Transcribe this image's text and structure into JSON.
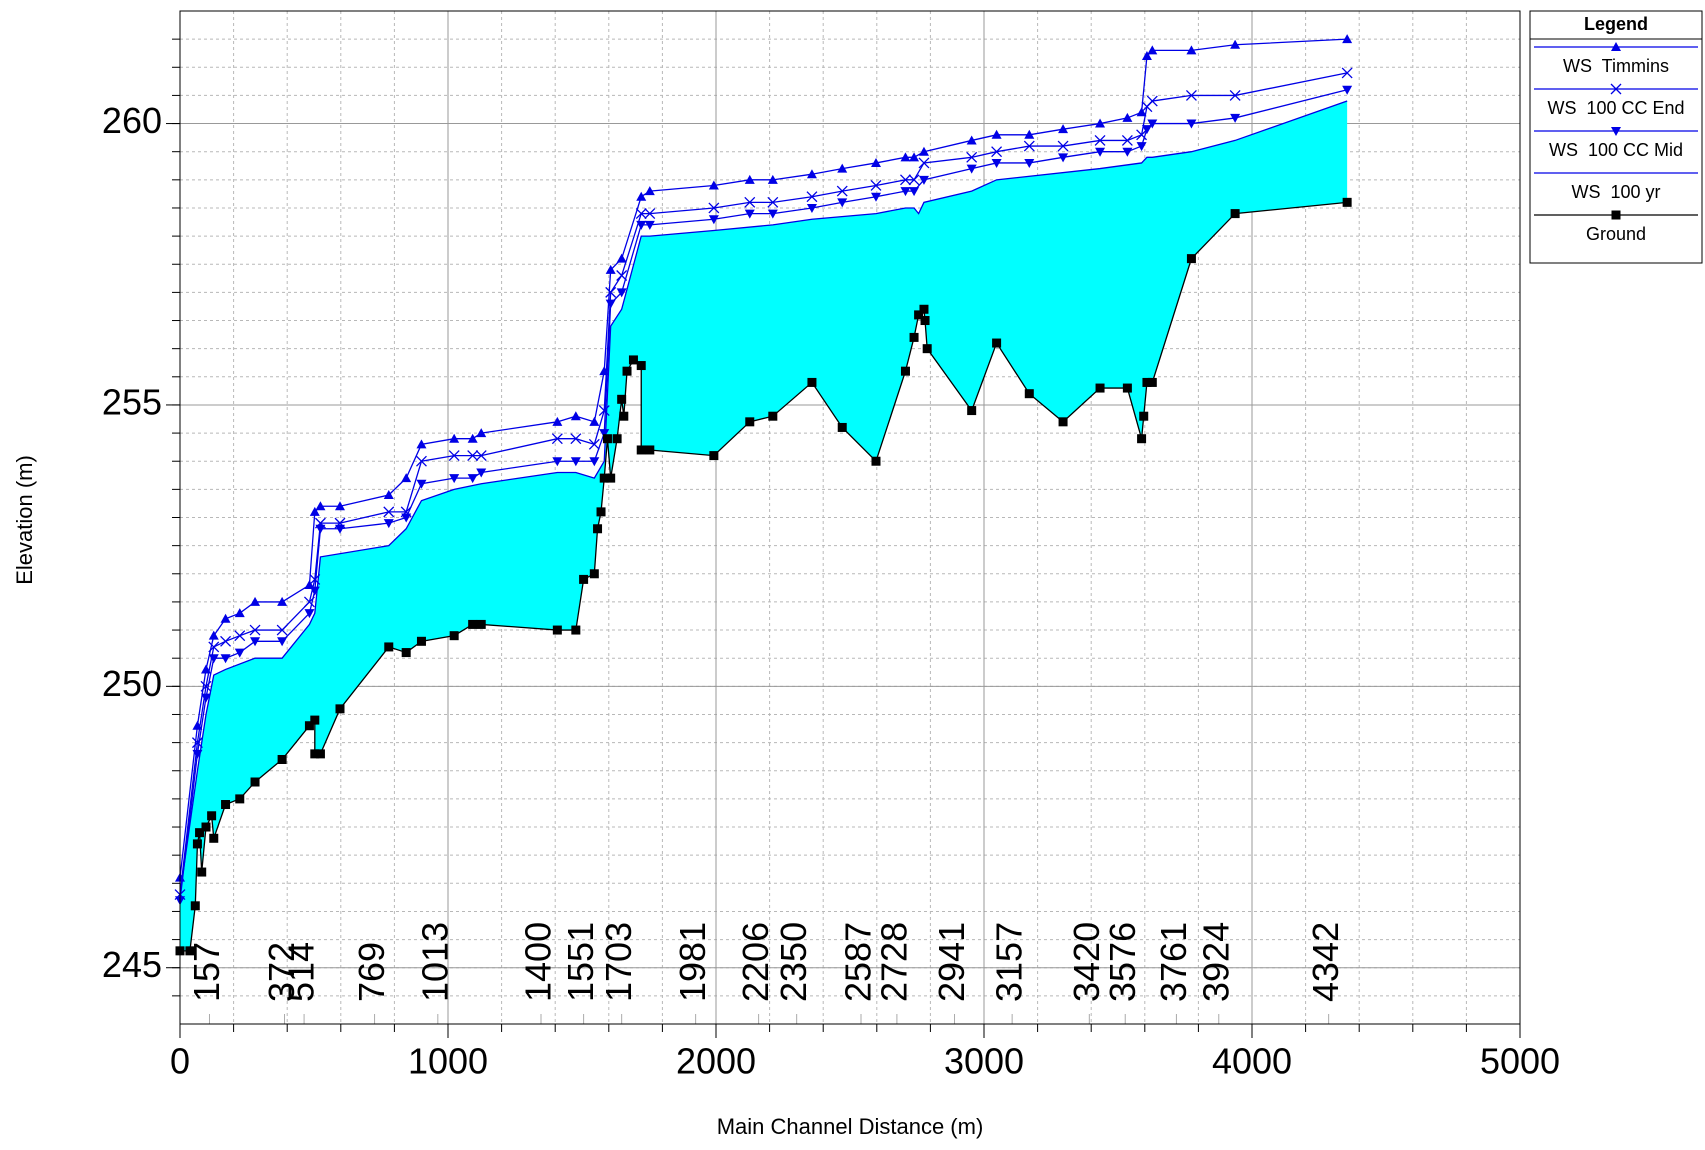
{
  "chart_data": {
    "type": "line",
    "x_label": "Main Channel Distance (m)",
    "y_label": "Elevation (m)",
    "legend_title": "Legend",
    "legend_position": "upper right outside",
    "xlim": [
      0,
      5000
    ],
    "ylim": [
      244,
      262
    ],
    "xticks": [
      0,
      1000,
      2000,
      3000,
      4000,
      5000
    ],
    "yticks": [
      245,
      250,
      255,
      260
    ],
    "grid": true,
    "minor_grid": {
      "x": 200,
      "y": 0.5
    },
    "fill_between": {
      "upper": "WS  100 yr",
      "lower": "Ground",
      "color": "#00ffff"
    },
    "series": [
      {
        "name": "WS  Timmins",
        "color": "#0000e6",
        "marker": "triangle-up",
        "x": [
          0,
          65,
          97,
          126,
          170,
          223,
          280,
          381,
          483,
          503,
          524,
          597,
          779,
          844,
          901,
          1023,
          1092,
          1124,
          1408,
          1477,
          1546,
          1583,
          1607,
          1648,
          1721,
          1753,
          1992,
          2126,
          2212,
          2358,
          2471,
          2597,
          2707,
          2739,
          2776,
          2954,
          3047,
          3169,
          3295,
          3433,
          3535,
          3588,
          3608,
          3628,
          3774,
          3937,
          4355
        ],
        "values": [
          246.6,
          249.3,
          250.3,
          250.9,
          251.2,
          251.3,
          251.5,
          251.5,
          251.8,
          253.1,
          253.2,
          253.2,
          253.4,
          253.7,
          254.3,
          254.4,
          254.4,
          254.5,
          254.7,
          254.8,
          254.7,
          255.6,
          257.4,
          257.6,
          258.7,
          258.8,
          258.9,
          259.0,
          259.0,
          259.1,
          259.2,
          259.3,
          259.4,
          259.4,
          259.5,
          259.7,
          259.8,
          259.8,
          259.9,
          260.0,
          260.1,
          260.2,
          261.2,
          261.3,
          261.3,
          261.4,
          261.5
        ]
      },
      {
        "name": "WS  100 CC End",
        "color": "#0000e6",
        "marker": "x",
        "x": [
          0,
          65,
          97,
          126,
          170,
          223,
          280,
          381,
          483,
          503,
          524,
          597,
          779,
          844,
          901,
          1023,
          1092,
          1124,
          1408,
          1477,
          1546,
          1583,
          1607,
          1648,
          1721,
          1753,
          1992,
          2126,
          2212,
          2358,
          2471,
          2597,
          2707,
          2739,
          2776,
          2954,
          3047,
          3169,
          3295,
          3433,
          3535,
          3588,
          3608,
          3628,
          3774,
          3937,
          4355
        ],
        "values": [
          246.3,
          249.0,
          250.0,
          250.7,
          250.8,
          250.9,
          251.0,
          251.0,
          251.5,
          251.9,
          252.9,
          252.9,
          253.1,
          253.1,
          254.0,
          254.1,
          254.1,
          254.1,
          254.4,
          254.4,
          254.3,
          254.9,
          257.0,
          257.3,
          258.4,
          258.4,
          258.5,
          258.6,
          258.6,
          258.7,
          258.8,
          258.9,
          259.0,
          259.0,
          259.3,
          259.4,
          259.5,
          259.6,
          259.6,
          259.7,
          259.7,
          259.8,
          260.3,
          260.4,
          260.5,
          260.5,
          260.9
        ]
      },
      {
        "name": "WS  100 CC Mid",
        "color": "#0000e6",
        "marker": "triangle-down",
        "x": [
          0,
          65,
          97,
          126,
          170,
          223,
          280,
          381,
          483,
          503,
          524,
          597,
          779,
          844,
          901,
          1023,
          1092,
          1124,
          1408,
          1477,
          1546,
          1583,
          1607,
          1648,
          1721,
          1753,
          1992,
          2126,
          2212,
          2358,
          2471,
          2597,
          2707,
          2739,
          2776,
          2954,
          3047,
          3169,
          3295,
          3433,
          3535,
          3588,
          3608,
          3628,
          3774,
          3937,
          4355
        ],
        "values": [
          246.2,
          248.8,
          249.8,
          250.5,
          250.5,
          250.6,
          250.8,
          250.8,
          251.3,
          251.7,
          252.8,
          252.8,
          252.9,
          253.0,
          253.6,
          253.7,
          253.7,
          253.8,
          254.0,
          254.0,
          254.0,
          254.5,
          256.8,
          257.0,
          258.2,
          258.2,
          258.3,
          258.4,
          258.4,
          258.5,
          258.6,
          258.7,
          258.8,
          258.8,
          259.0,
          259.2,
          259.3,
          259.3,
          259.4,
          259.5,
          259.5,
          259.6,
          259.9,
          260.0,
          260.0,
          260.1,
          260.6
        ]
      },
      {
        "name": "WS  100 yr",
        "color": "#0000e6",
        "marker": "none",
        "x": [
          0,
          65,
          97,
          126,
          170,
          280,
          381,
          483,
          503,
          524,
          779,
          844,
          901,
          1023,
          1124,
          1408,
          1477,
          1546,
          1583,
          1607,
          1648,
          1721,
          1753,
          1992,
          2212,
          2358,
          2597,
          2707,
          2739,
          2756,
          2776,
          2954,
          3047,
          3433,
          3588,
          3608,
          3628,
          3774,
          3937,
          4355
        ],
        "values": [
          246.3,
          248.5,
          249.5,
          250.2,
          250.3,
          250.5,
          250.5,
          251.1,
          251.3,
          252.3,
          252.5,
          252.8,
          253.3,
          253.5,
          253.6,
          253.8,
          253.8,
          253.7,
          254.0,
          256.4,
          256.7,
          258.0,
          258.0,
          258.1,
          258.2,
          258.3,
          258.4,
          258.5,
          258.5,
          258.4,
          258.6,
          258.8,
          259.0,
          259.2,
          259.3,
          259.4,
          259.4,
          259.5,
          259.7,
          260.4
        ]
      },
      {
        "name": "Ground",
        "color": "#000000",
        "marker": "square",
        "x": [
          0,
          37,
          57,
          65,
          73,
          81,
          97,
          118,
          126,
          170,
          223,
          280,
          381,
          483,
          503,
          503,
          524,
          597,
          779,
          844,
          901,
          1023,
          1092,
          1124,
          1408,
          1477,
          1506,
          1546,
          1558,
          1571,
          1583,
          1595,
          1607,
          1631,
          1648,
          1656,
          1668,
          1692,
          1721,
          1721,
          1753,
          1992,
          2126,
          2212,
          2358,
          2471,
          2597,
          2707,
          2739,
          2756,
          2776,
          2780,
          2788,
          2954,
          3047,
          3169,
          3295,
          3433,
          3535,
          3588,
          3596,
          3608,
          3628,
          3774,
          3937,
          4355
        ],
        "values": [
          245.3,
          245.3,
          246.1,
          247.2,
          247.4,
          246.7,
          247.5,
          247.7,
          247.3,
          247.9,
          248.0,
          248.3,
          248.7,
          249.3,
          249.4,
          248.8,
          248.8,
          249.6,
          250.7,
          250.6,
          250.8,
          250.9,
          251.1,
          251.1,
          251.0,
          251.0,
          251.9,
          252.0,
          252.8,
          253.1,
          253.7,
          254.4,
          253.7,
          254.4,
          255.1,
          254.8,
          255.6,
          255.8,
          255.7,
          254.2,
          254.2,
          254.1,
          254.7,
          254.8,
          255.4,
          254.6,
          254.0,
          255.6,
          256.2,
          256.6,
          256.7,
          256.5,
          256.0,
          254.9,
          256.1,
          255.2,
          254.7,
          255.3,
          255.3,
          254.4,
          254.8,
          255.4,
          255.4,
          257.6,
          258.4,
          258.6
        ]
      }
    ],
    "stations": [
      {
        "name": "157",
        "distance": 110
      },
      {
        "name": "372",
        "distance": 390
      },
      {
        "name": "514",
        "distance": 463
      },
      {
        "name": "769",
        "distance": 726
      },
      {
        "name": "1013",
        "distance": 962
      },
      {
        "name": "1400",
        "distance": 1347
      },
      {
        "name": "1551",
        "distance": 1506
      },
      {
        "name": "1703",
        "distance": 1648
      },
      {
        "name": "1981",
        "distance": 1924
      },
      {
        "name": "2206",
        "distance": 2159
      },
      {
        "name": "2350",
        "distance": 2301
      },
      {
        "name": "2587",
        "distance": 2541
      },
      {
        "name": "2728",
        "distance": 2675
      },
      {
        "name": "2941",
        "distance": 2890
      },
      {
        "name": "3157",
        "distance": 3105
      },
      {
        "name": "3420",
        "distance": 3393
      },
      {
        "name": "3576",
        "distance": 3527
      },
      {
        "name": "3761",
        "distance": 3718
      },
      {
        "name": "3924",
        "distance": 3876
      },
      {
        "name": "4342",
        "distance": 4286
      }
    ]
  }
}
